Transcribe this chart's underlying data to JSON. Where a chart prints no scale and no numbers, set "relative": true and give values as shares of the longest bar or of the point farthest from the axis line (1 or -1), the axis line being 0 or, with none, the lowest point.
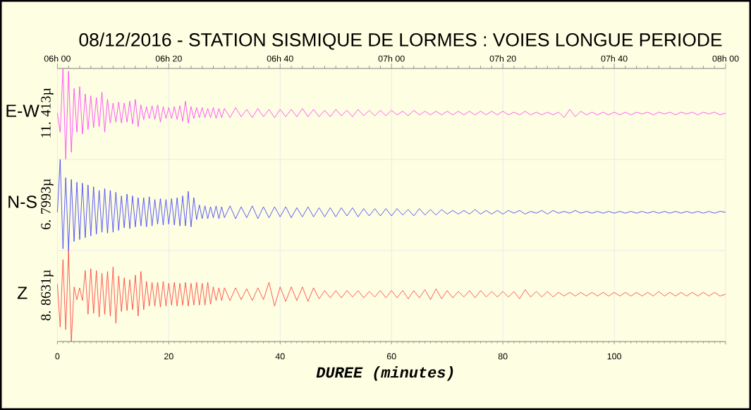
{
  "chart_data": [
    {
      "type": "line",
      "title": "08/12/2016  -  STATION SISMIQUE DE LORMES : VOIES LONGUE PERIODE",
      "ylabel": "E-W",
      "annotations": [
        "11. 413µ"
      ],
      "relative": true,
      "color": "#ff33ff",
      "xlim": [
        0,
        120
      ],
      "x2lim": [
        "2016-12-08T06:00",
        "2016-12-08T08:00"
      ],
      "x2ticks": [
        {
          "value": "2016-12-08T06:00",
          "label": "06h 00"
        },
        {
          "value": "2016-12-08T06:20",
          "label": "06h 20"
        },
        {
          "value": "2016-12-08T06:40",
          "label": "06h 40"
        },
        {
          "value": "2016-12-08T07:00",
          "label": "07h 00"
        },
        {
          "value": "2016-12-08T07:20",
          "label": "07h 20"
        },
        {
          "value": "2016-12-08T07:40",
          "label": "07h 40"
        },
        {
          "value": "2016-12-08T08:00",
          "label": "08h 00"
        }
      ],
      "grid": "x",
      "x": [
        0,
        0.5,
        1,
        1.5,
        2,
        2.5,
        3,
        3.5,
        4,
        4.5,
        5,
        5.5,
        6,
        6.5,
        7,
        7.5,
        8,
        8.5,
        9,
        9.5,
        10,
        10.5,
        11,
        11.5,
        12,
        12.5,
        13,
        13.5,
        14,
        14.5,
        15,
        15.5,
        16,
        16.5,
        17,
        17.5,
        18,
        18.5,
        19,
        19.5,
        20,
        20.5,
        21,
        21.5,
        22,
        22.5,
        23,
        23.5,
        24,
        24.5,
        25,
        25.5,
        26,
        26.5,
        27,
        27.5,
        28,
        28.5,
        29,
        29.5,
        30,
        31,
        32,
        33,
        34,
        35,
        36,
        37,
        38,
        39,
        40,
        41,
        42,
        43,
        44,
        45,
        46,
        47,
        48,
        49,
        50,
        51,
        52,
        53,
        54,
        55,
        56,
        57,
        58,
        59,
        60,
        61,
        62,
        63,
        64,
        65,
        66,
        67,
        68,
        69,
        70,
        71,
        72,
        73,
        74,
        75,
        76,
        77,
        78,
        79,
        80,
        81,
        82,
        83,
        84,
        85,
        86,
        87,
        88,
        89,
        90,
        91,
        92,
        93,
        94,
        95,
        96,
        97,
        98,
        99,
        100,
        101,
        102,
        103,
        104,
        105,
        106,
        107,
        108,
        109,
        110,
        111,
        112,
        113,
        114,
        115,
        116,
        117,
        118,
        119,
        120
      ],
      "values": [
        0.51,
        0.3,
        1.0,
        0.0,
        0.97,
        0.08,
        0.78,
        0.3,
        0.8,
        0.28,
        0.72,
        0.33,
        0.7,
        0.35,
        0.68,
        0.36,
        0.74,
        0.3,
        0.66,
        0.4,
        0.62,
        0.41,
        0.63,
        0.4,
        0.62,
        0.41,
        0.64,
        0.39,
        0.66,
        0.36,
        0.6,
        0.44,
        0.58,
        0.45,
        0.59,
        0.44,
        0.6,
        0.41,
        0.58,
        0.45,
        0.57,
        0.45,
        0.58,
        0.44,
        0.59,
        0.42,
        0.64,
        0.4,
        0.58,
        0.45,
        0.57,
        0.46,
        0.57,
        0.46,
        0.56,
        0.46,
        0.57,
        0.45,
        0.56,
        0.46,
        0.56,
        0.46,
        0.57,
        0.47,
        0.55,
        0.46,
        0.56,
        0.47,
        0.55,
        0.46,
        0.55,
        0.47,
        0.55,
        0.47,
        0.56,
        0.47,
        0.55,
        0.47,
        0.54,
        0.47,
        0.55,
        0.48,
        0.54,
        0.47,
        0.55,
        0.48,
        0.54,
        0.48,
        0.54,
        0.48,
        0.54,
        0.49,
        0.53,
        0.48,
        0.54,
        0.49,
        0.53,
        0.49,
        0.53,
        0.49,
        0.53,
        0.49,
        0.53,
        0.49,
        0.53,
        0.49,
        0.53,
        0.49,
        0.53,
        0.49,
        0.53,
        0.49,
        0.52,
        0.49,
        0.53,
        0.49,
        0.52,
        0.49,
        0.52,
        0.49,
        0.52,
        0.46,
        0.55,
        0.47,
        0.53,
        0.49,
        0.52,
        0.49,
        0.52,
        0.49,
        0.52,
        0.49,
        0.52,
        0.49,
        0.52,
        0.5,
        0.52,
        0.49,
        0.52,
        0.5,
        0.52,
        0.49,
        0.52,
        0.5,
        0.52,
        0.49,
        0.52,
        0.5,
        0.52,
        0.49,
        0.51
      ]
    },
    {
      "type": "line",
      "ylabel": "N-S",
      "annotations": [
        "6. 7993µ"
      ],
      "relative": true,
      "color": "#3333ff",
      "xlim": [
        0,
        120
      ],
      "xticks": [
        0,
        20,
        40,
        60,
        80,
        100,
        120
      ],
      "tick_labels": false,
      "grid": "x",
      "x": [
        0,
        0.5,
        1,
        1.5,
        2,
        2.5,
        3,
        3.5,
        4,
        4.5,
        5,
        5.5,
        6,
        6.5,
        7,
        7.5,
        8,
        8.5,
        9,
        9.5,
        10,
        10.5,
        11,
        11.5,
        12,
        12.5,
        13,
        13.5,
        14,
        14.5,
        15,
        15.5,
        16,
        16.5,
        17,
        17.5,
        18,
        18.5,
        19,
        19.5,
        20,
        20.5,
        21,
        21.5,
        22,
        22.5,
        23,
        23.5,
        24,
        24.5,
        25,
        25.5,
        26,
        26.5,
        27,
        27.5,
        28,
        28.5,
        29,
        29.5,
        30,
        31,
        32,
        33,
        34,
        35,
        36,
        37,
        38,
        39,
        40,
        41,
        42,
        43,
        44,
        45,
        46,
        47,
        48,
        49,
        50,
        51,
        52,
        53,
        54,
        55,
        56,
        57,
        58,
        59,
        60,
        61,
        62,
        63,
        64,
        65,
        66,
        67,
        68,
        69,
        70,
        71,
        72,
        73,
        74,
        75,
        76,
        77,
        78,
        79,
        80,
        81,
        82,
        83,
        84,
        85,
        86,
        87,
        88,
        89,
        90,
        91,
        92,
        93,
        94,
        95,
        96,
        97,
        98,
        99,
        100,
        101,
        102,
        103,
        104,
        105,
        106,
        107,
        108,
        109,
        110,
        111,
        112,
        113,
        114,
        115,
        116,
        117,
        118,
        119,
        120
      ],
      "values": [
        0.42,
        1.0,
        0.02,
        0.8,
        0.0,
        0.78,
        0.1,
        0.75,
        0.12,
        0.74,
        0.14,
        0.72,
        0.16,
        0.7,
        0.18,
        0.66,
        0.2,
        0.68,
        0.19,
        0.66,
        0.2,
        0.64,
        0.22,
        0.6,
        0.25,
        0.62,
        0.24,
        0.6,
        0.26,
        0.58,
        0.27,
        0.58,
        0.26,
        0.59,
        0.27,
        0.56,
        0.29,
        0.57,
        0.28,
        0.56,
        0.29,
        0.57,
        0.28,
        0.58,
        0.27,
        0.6,
        0.27,
        0.65,
        0.26,
        0.58,
        0.34,
        0.5,
        0.35,
        0.49,
        0.35,
        0.48,
        0.36,
        0.49,
        0.35,
        0.48,
        0.36,
        0.49,
        0.35,
        0.48,
        0.36,
        0.49,
        0.35,
        0.48,
        0.36,
        0.48,
        0.37,
        0.48,
        0.36,
        0.47,
        0.37,
        0.48,
        0.37,
        0.47,
        0.37,
        0.47,
        0.37,
        0.47,
        0.38,
        0.47,
        0.37,
        0.46,
        0.38,
        0.46,
        0.38,
        0.46,
        0.38,
        0.46,
        0.39,
        0.45,
        0.38,
        0.46,
        0.39,
        0.45,
        0.39,
        0.45,
        0.4,
        0.44,
        0.4,
        0.44,
        0.4,
        0.45,
        0.4,
        0.44,
        0.4,
        0.44,
        0.4,
        0.44,
        0.41,
        0.44,
        0.4,
        0.43,
        0.41,
        0.44,
        0.4,
        0.44,
        0.41,
        0.43,
        0.41,
        0.44,
        0.41,
        0.43,
        0.41,
        0.43,
        0.41,
        0.43,
        0.41,
        0.43,
        0.41,
        0.43,
        0.41,
        0.43,
        0.41,
        0.43,
        0.41,
        0.43,
        0.41,
        0.43,
        0.41,
        0.43,
        0.41,
        0.43,
        0.41,
        0.43,
        0.41,
        0.43,
        0.42
      ]
    },
    {
      "type": "line",
      "ylabel": "Z",
      "annotations": [
        "8. 8631µ"
      ],
      "xlabel": "DUREE (minutes)",
      "relative": true,
      "color": "#ff3333",
      "xlim": [
        0,
        120
      ],
      "xticks": [
        0,
        20,
        40,
        60,
        80,
        100,
        {
          "value": 120,
          "label": null
        }
      ],
      "grid": "x",
      "x": [
        0,
        0.5,
        1,
        1.5,
        2,
        2.5,
        3,
        3.5,
        4,
        4.5,
        5,
        5.5,
        6,
        6.5,
        7,
        7.5,
        8,
        8.5,
        9,
        9.5,
        10,
        10.5,
        11,
        11.5,
        12,
        12.5,
        13,
        13.5,
        14,
        14.5,
        15,
        15.5,
        16,
        16.5,
        17,
        17.5,
        18,
        18.5,
        19,
        19.5,
        20,
        20.5,
        21,
        21.5,
        22,
        22.5,
        23,
        23.5,
        24,
        24.5,
        25,
        25.5,
        26,
        26.5,
        27,
        27.5,
        28,
        28.5,
        29,
        29.5,
        30,
        31,
        32,
        33,
        34,
        35,
        36,
        37,
        38,
        39,
        40,
        41,
        42,
        43,
        44,
        45,
        46,
        47,
        48,
        49,
        50,
        51,
        52,
        53,
        54,
        55,
        56,
        57,
        58,
        59,
        60,
        61,
        62,
        63,
        64,
        65,
        66,
        67,
        68,
        69,
        70,
        71,
        72,
        73,
        74,
        75,
        76,
        77,
        78,
        79,
        80,
        81,
        82,
        83,
        84,
        85,
        86,
        87,
        88,
        89,
        90,
        91,
        92,
        93,
        94,
        95,
        96,
        97,
        98,
        99,
        100,
        101,
        102,
        103,
        104,
        105,
        106,
        107,
        108,
        109,
        110,
        111,
        112,
        113,
        114,
        115,
        116,
        117,
        118,
        119,
        120
      ],
      "values": [
        0.63,
        0.16,
        0.9,
        0.13,
        1.0,
        0.0,
        0.6,
        0.46,
        0.59,
        0.45,
        0.78,
        0.3,
        0.8,
        0.31,
        0.78,
        0.27,
        0.75,
        0.3,
        0.77,
        0.28,
        0.82,
        0.2,
        0.72,
        0.33,
        0.7,
        0.34,
        0.68,
        0.35,
        0.73,
        0.28,
        0.77,
        0.35,
        0.66,
        0.39,
        0.65,
        0.39,
        0.65,
        0.38,
        0.66,
        0.39,
        0.64,
        0.4,
        0.65,
        0.39,
        0.64,
        0.4,
        0.65,
        0.39,
        0.64,
        0.4,
        0.65,
        0.4,
        0.64,
        0.4,
        0.65,
        0.41,
        0.6,
        0.45,
        0.59,
        0.45,
        0.59,
        0.45,
        0.59,
        0.46,
        0.58,
        0.45,
        0.59,
        0.46,
        0.65,
        0.39,
        0.6,
        0.44,
        0.6,
        0.45,
        0.6,
        0.44,
        0.59,
        0.47,
        0.56,
        0.48,
        0.56,
        0.48,
        0.56,
        0.49,
        0.56,
        0.48,
        0.55,
        0.49,
        0.56,
        0.48,
        0.56,
        0.48,
        0.56,
        0.47,
        0.56,
        0.48,
        0.57,
        0.46,
        0.58,
        0.47,
        0.56,
        0.48,
        0.55,
        0.49,
        0.56,
        0.48,
        0.56,
        0.49,
        0.55,
        0.49,
        0.55,
        0.49,
        0.55,
        0.47,
        0.57,
        0.49,
        0.55,
        0.49,
        0.55,
        0.49,
        0.54,
        0.5,
        0.54,
        0.5,
        0.54,
        0.5,
        0.54,
        0.5,
        0.54,
        0.5,
        0.54,
        0.5,
        0.54,
        0.5,
        0.54,
        0.5,
        0.54,
        0.5,
        0.55,
        0.5,
        0.54,
        0.5,
        0.54,
        0.5,
        0.54,
        0.5,
        0.54,
        0.5,
        0.54,
        0.5,
        0.52
      ]
    }
  ]
}
